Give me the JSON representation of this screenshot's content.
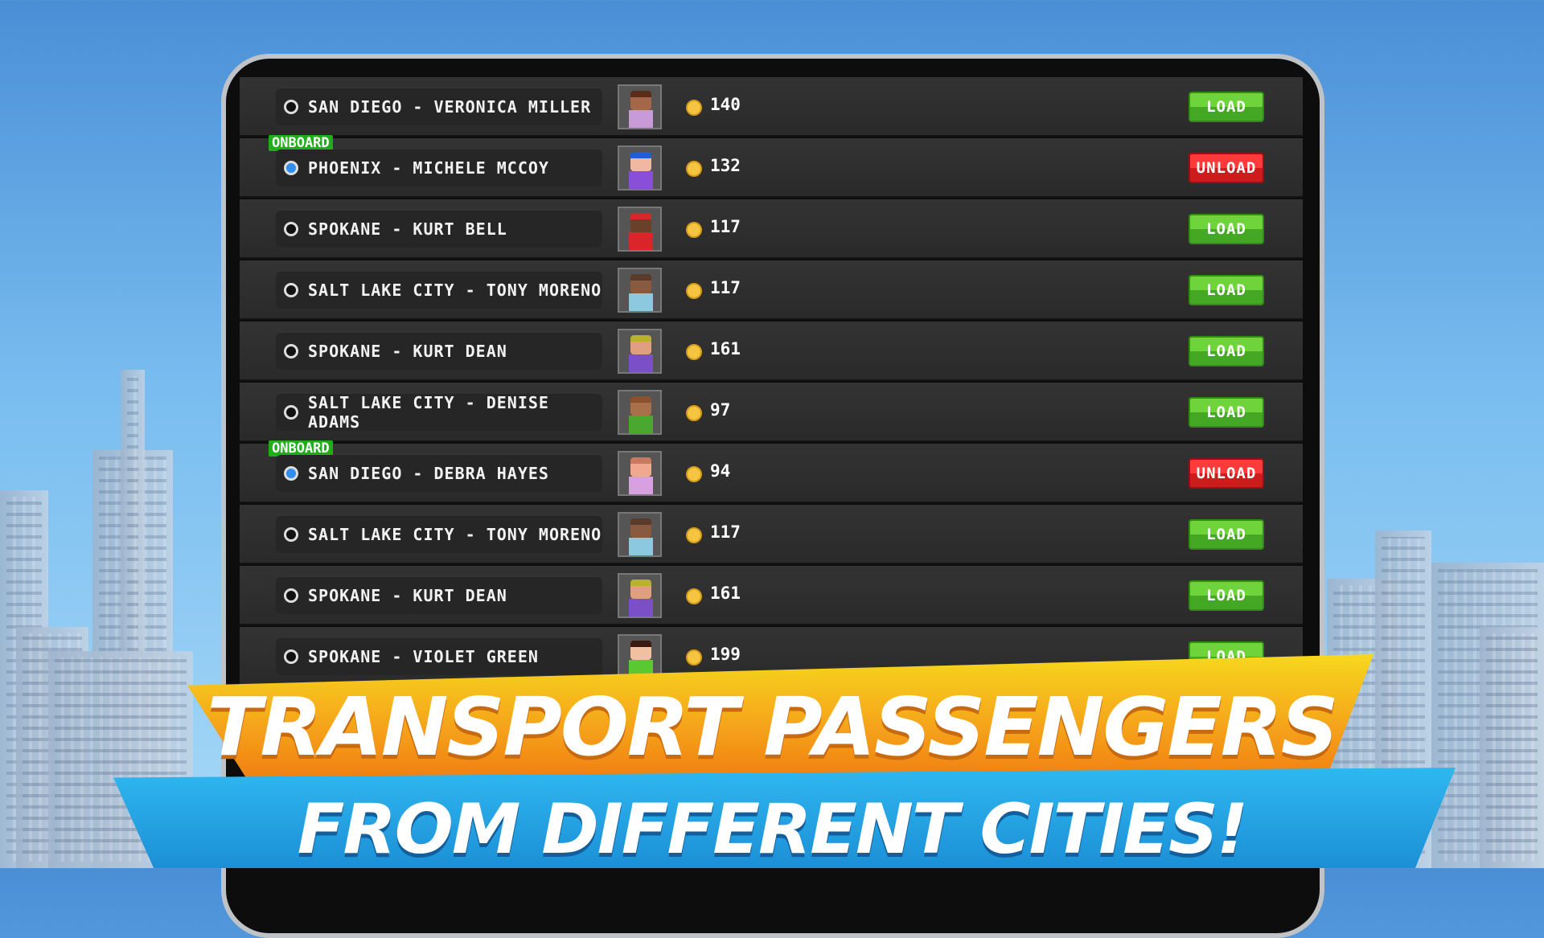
{
  "passengers": [
    {
      "destination": "SAN DIEGO - VERONICA MILLER",
      "fare": "140",
      "onboard": false,
      "action": "LOAD",
      "skin": "#a5674a",
      "hair": "#5a2c1a",
      "shirt": "#c89ad8"
    },
    {
      "destination": "PHOENIX - MICHELE MCCOY",
      "fare": "132",
      "onboard": true,
      "action": "UNLOAD",
      "skin": "#f0b8a0",
      "hair": "#1e5fd6",
      "shirt": "#8a4fd8"
    },
    {
      "destination": "SPOKANE - KURT BELL",
      "fare": "117",
      "onboard": false,
      "action": "LOAD",
      "skin": "#6b3f2a",
      "hair": "#d8262a",
      "shirt": "#d8262a"
    },
    {
      "destination": "SALT LAKE CITY - TONY MORENO",
      "fare": "117",
      "onboard": false,
      "action": "LOAD",
      "skin": "#8a5a40",
      "hair": "#5a3a2a",
      "shirt": "#8cc8e0"
    },
    {
      "destination": "SPOKANE - KURT DEAN",
      "fare": "161",
      "onboard": false,
      "action": "LOAD",
      "skin": "#e0a080",
      "hair": "#b8b030",
      "shirt": "#7a4fc8"
    },
    {
      "destination": "SALT LAKE CITY - DENISE ADAMS",
      "fare": "97",
      "onboard": false,
      "action": "LOAD",
      "skin": "#a8704a",
      "hair": "#8a5030",
      "shirt": "#4aa830"
    },
    {
      "destination": "SAN DIEGO - DEBRA HAYES",
      "fare": "94",
      "onboard": true,
      "action": "UNLOAD",
      "skin": "#f0a890",
      "hair": "#c87a60",
      "shirt": "#d8a0e0"
    },
    {
      "destination": "SALT LAKE CITY - TONY MORENO",
      "fare": "117",
      "onboard": false,
      "action": "LOAD",
      "skin": "#8a5a40",
      "hair": "#5a3a2a",
      "shirt": "#8cc8e0"
    },
    {
      "destination": "SPOKANE - KURT DEAN",
      "fare": "161",
      "onboard": false,
      "action": "LOAD",
      "skin": "#e0a080",
      "hair": "#b8b030",
      "shirt": "#7a4fc8"
    },
    {
      "destination": "SPOKANE - VIOLET GREEN",
      "fare": "199",
      "onboard": false,
      "action": "LOAD",
      "skin": "#f0c0a0",
      "hair": "#3a1a10",
      "shirt": "#5ac830"
    }
  ],
  "onboard_label": "ONBOARD",
  "banner": {
    "line1": "TRANSPORT PASSENGERS",
    "line2": "FROM DIFFERENT CITIES!"
  }
}
